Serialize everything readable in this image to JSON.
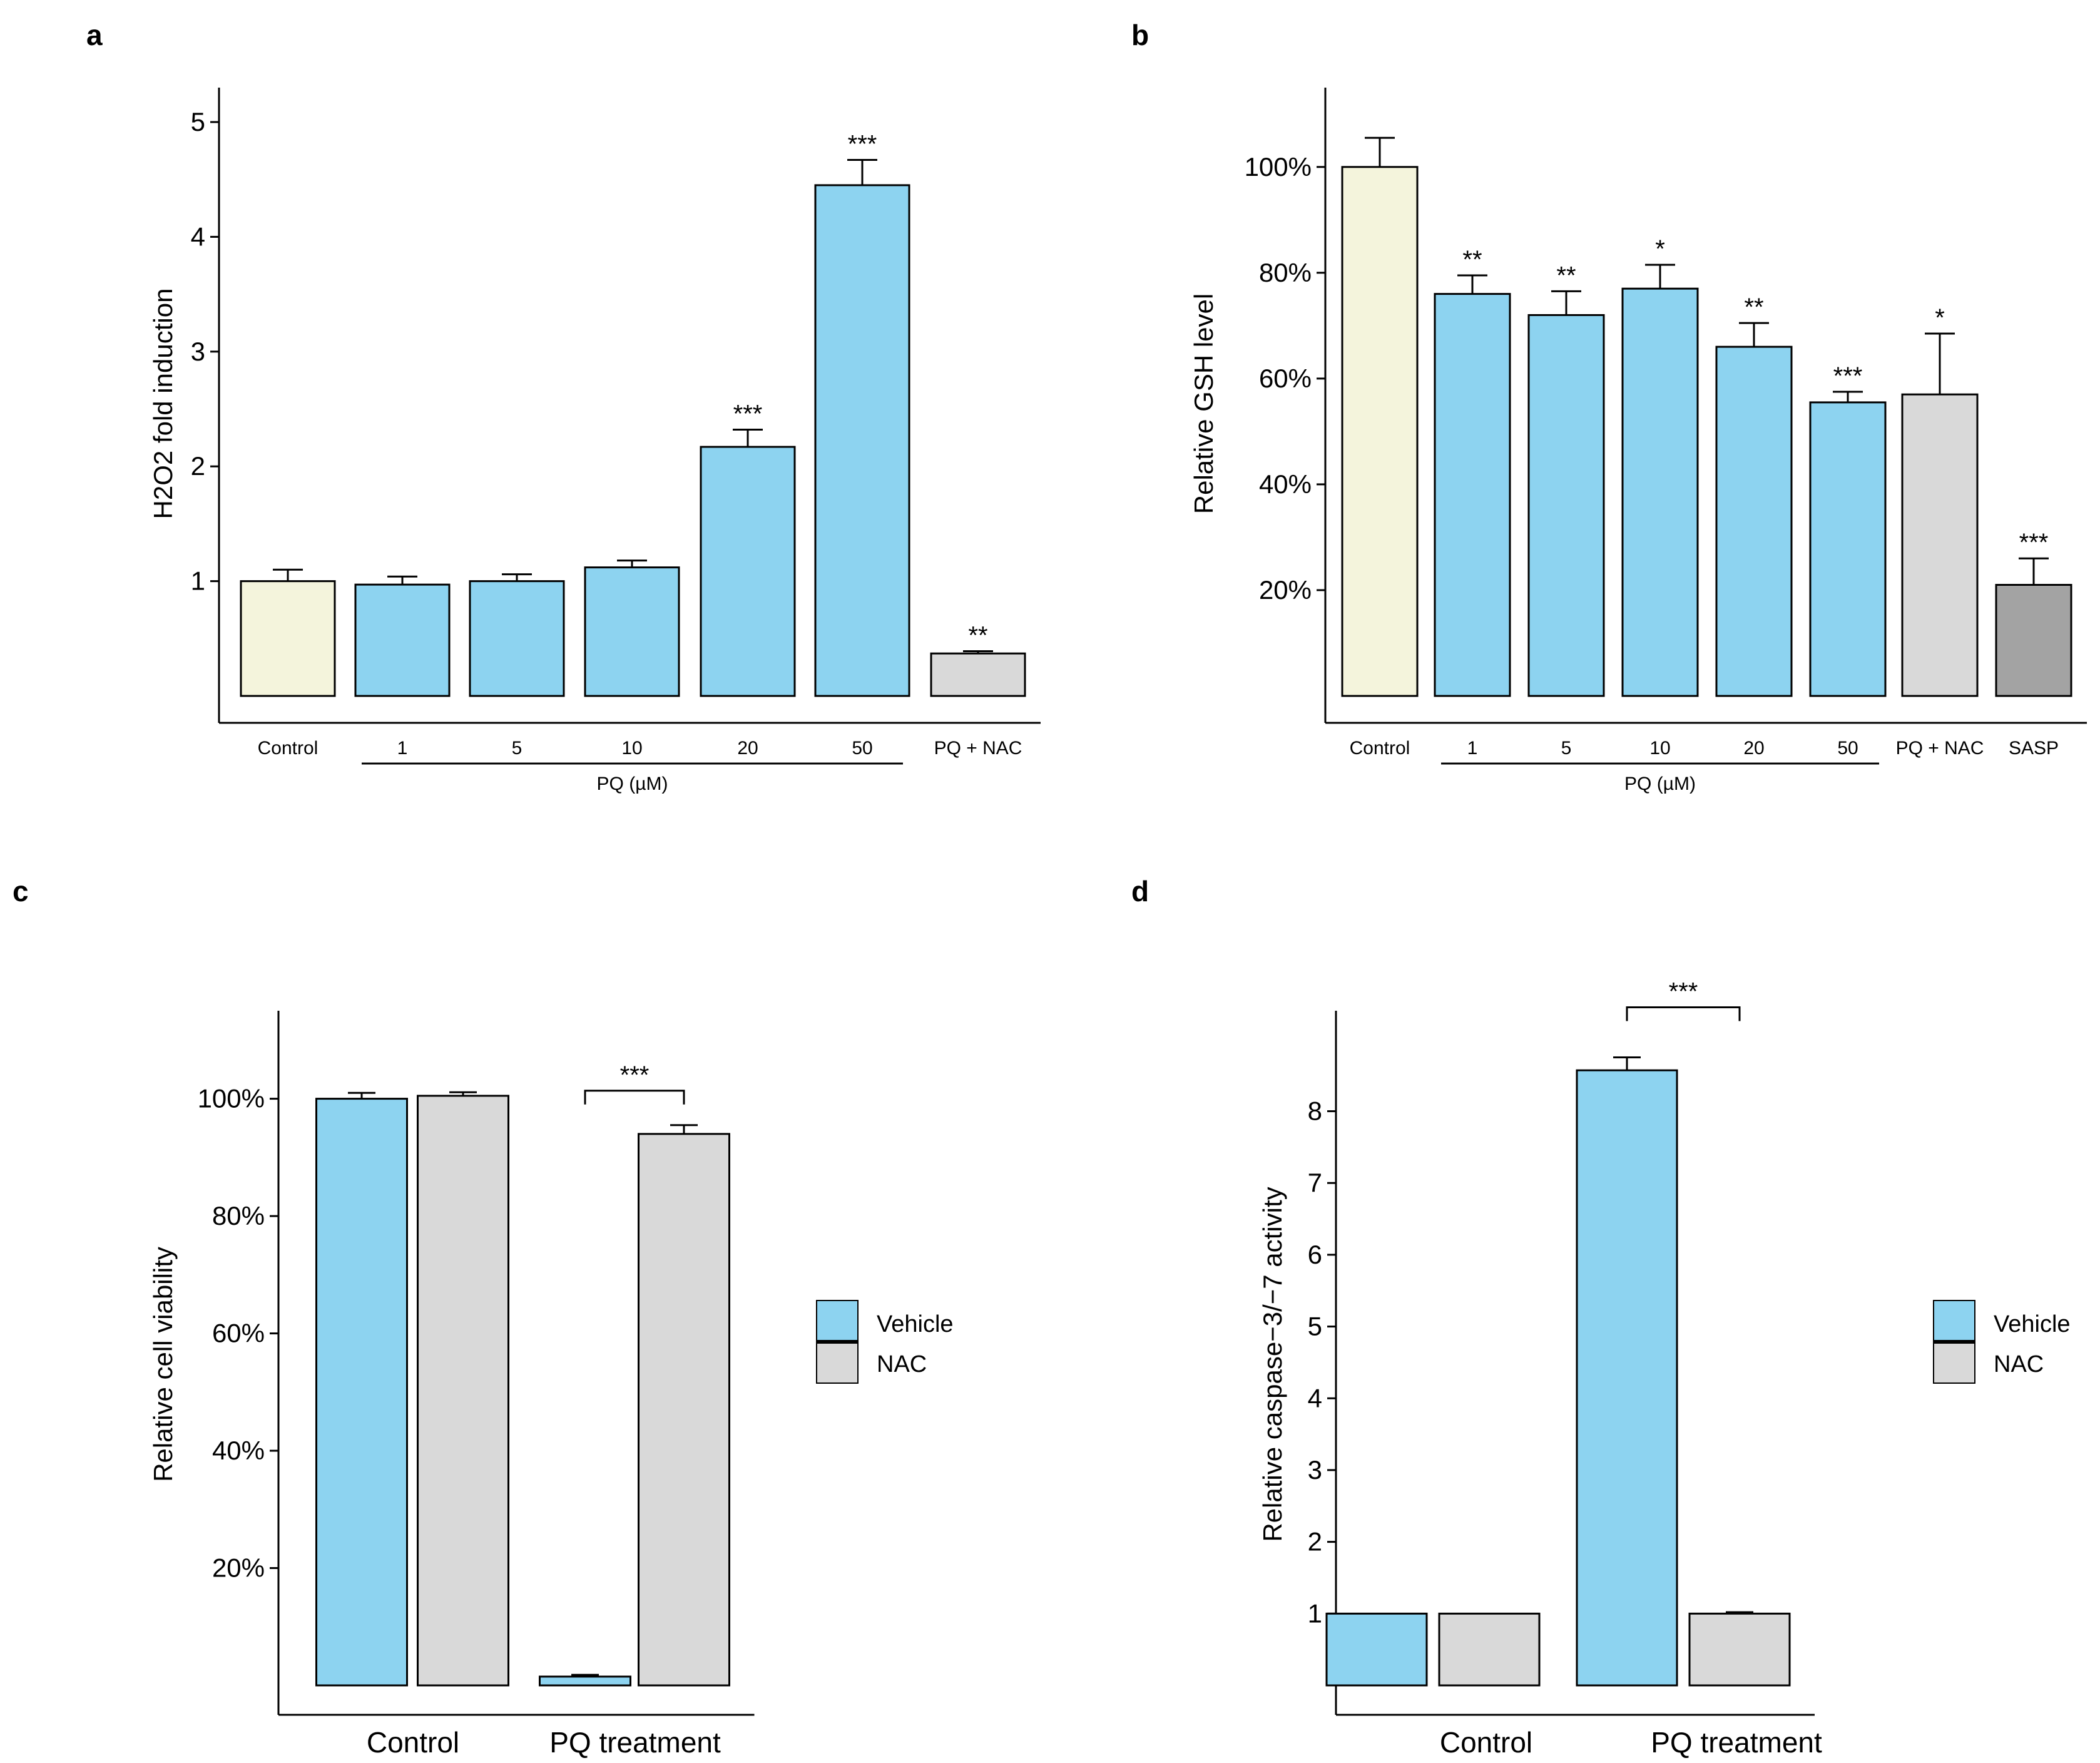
{
  "colors": {
    "control": "#f4f4dc",
    "pq": "#8dd3f0",
    "nac": "#d9d9d9",
    "sasp": "#a3a3a3"
  },
  "chart_data": [
    {
      "panel": "a",
      "type": "bar",
      "ylabel": "H2O2 fold induction",
      "ylim": [
        0,
        5.3
      ],
      "yticks": [
        1,
        2,
        3,
        4,
        5
      ],
      "categories": [
        "Control",
        "1",
        "5",
        "10",
        "20",
        "50",
        "PQ + NAC"
      ],
      "values": [
        1.0,
        0.97,
        1.0,
        1.12,
        2.17,
        4.45,
        0.37
      ],
      "errors": [
        0.1,
        0.07,
        0.06,
        0.06,
        0.15,
        0.22,
        0.02
      ],
      "significance": [
        "",
        "",
        "",
        "",
        "***",
        "***",
        "**"
      ],
      "bar_colors": [
        "control",
        "pq",
        "pq",
        "pq",
        "pq",
        "pq",
        "nac"
      ],
      "group_label": "PQ (µM)",
      "group_span": [
        1,
        5
      ]
    },
    {
      "panel": "b",
      "type": "bar",
      "ylabel": "Relative GSH level",
      "ylim": [
        0,
        1.15
      ],
      "yticks": [
        0.2,
        0.4,
        0.6,
        0.8,
        1.0
      ],
      "ytick_labels": [
        "20%",
        "40%",
        "60%",
        "80%",
        "100%"
      ],
      "categories": [
        "Control",
        "1",
        "5",
        "10",
        "20",
        "50",
        "PQ + NAC",
        "SASP"
      ],
      "values": [
        1.0,
        0.76,
        0.72,
        0.77,
        0.66,
        0.555,
        0.57,
        0.21
      ],
      "errors": [
        0.055,
        0.035,
        0.045,
        0.045,
        0.045,
        0.02,
        0.115,
        0.05
      ],
      "significance": [
        "",
        "**",
        "**",
        "*",
        "**",
        "***",
        "*",
        "***"
      ],
      "bar_colors": [
        "control",
        "pq",
        "pq",
        "pq",
        "pq",
        "pq",
        "nac",
        "sasp"
      ],
      "group_label": "PQ (µM)",
      "group_span": [
        1,
        5
      ]
    },
    {
      "panel": "c",
      "type": "bar",
      "ylabel": "Relative cell viability",
      "ylim": [
        0,
        1.15
      ],
      "yticks": [
        0.2,
        0.4,
        0.6,
        0.8,
        1.0
      ],
      "ytick_labels": [
        "20%",
        "40%",
        "60%",
        "80%",
        "100%"
      ],
      "categories": [
        "Control",
        "PQ treatment"
      ],
      "series": [
        {
          "name": "Vehicle",
          "color": "pq",
          "values": [
            1.0,
            0.015
          ],
          "errors": [
            0.01,
            0.003
          ]
        },
        {
          "name": "NAC",
          "color": "nac",
          "values": [
            1.005,
            0.94
          ],
          "errors": [
            0.006,
            0.015
          ]
        }
      ],
      "significance_bracket": {
        "category": 1,
        "label": "***"
      },
      "legend": [
        "Vehicle",
        "NAC"
      ]
    },
    {
      "panel": "d",
      "type": "bar",
      "ylabel": "Relative caspase−3/−7 activity",
      "ylim": [
        0,
        9.4
      ],
      "yticks": [
        1,
        2,
        3,
        4,
        5,
        6,
        7,
        8
      ],
      "categories": [
        "Control",
        "PQ treatment"
      ],
      "series": [
        {
          "name": "Vehicle",
          "color": "pq",
          "values": [
            1.0,
            8.57
          ],
          "errors": [
            0,
            0.18
          ]
        },
        {
          "name": "NAC",
          "color": "nac",
          "values": [
            1.0,
            1.0
          ],
          "errors": [
            0,
            0.02
          ]
        }
      ],
      "significance_bracket": {
        "category": 1,
        "label": "***"
      },
      "legend": [
        "Vehicle",
        "NAC"
      ]
    }
  ]
}
